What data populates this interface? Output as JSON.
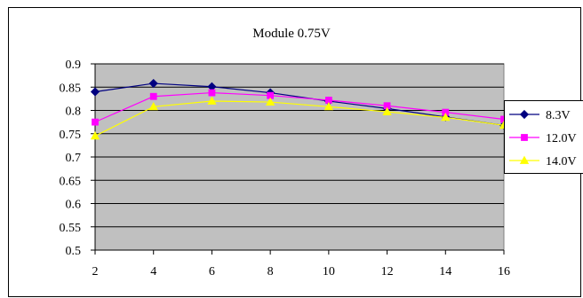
{
  "chart_data": {
    "type": "line",
    "title": "Module 0.75V",
    "xlabel": "",
    "ylabel": "",
    "x": [
      2,
      4,
      6,
      8,
      10,
      12,
      14,
      16
    ],
    "x_ticks": [
      "2",
      "4",
      "6",
      "8",
      "10",
      "12",
      "14",
      "16"
    ],
    "y_ticks": [
      "0.5",
      "0.55",
      "0.6",
      "0.65",
      "0.7",
      "0.75",
      "0.8",
      "0.85",
      "0.9"
    ],
    "ylim": [
      0.5,
      0.9
    ],
    "xlim": [
      2,
      16
    ],
    "grid": true,
    "legend": "right",
    "plot_background": "#c0c0c0",
    "series": [
      {
        "name": "8.3V",
        "color": "#000080",
        "marker": "diamond",
        "values": [
          0.84,
          0.858,
          0.851,
          0.838,
          0.82,
          0.804,
          0.786,
          0.768
        ]
      },
      {
        "name": "12.0V",
        "color": "#ff00ff",
        "marker": "square",
        "values": [
          0.775,
          0.83,
          0.838,
          0.832,
          0.822,
          0.81,
          0.796,
          0.781
        ]
      },
      {
        "name": "14.0V",
        "color": "#ffff00",
        "marker": "triangle",
        "values": [
          0.745,
          0.808,
          0.82,
          0.818,
          0.808,
          0.797,
          0.785,
          0.768
        ]
      }
    ]
  }
}
